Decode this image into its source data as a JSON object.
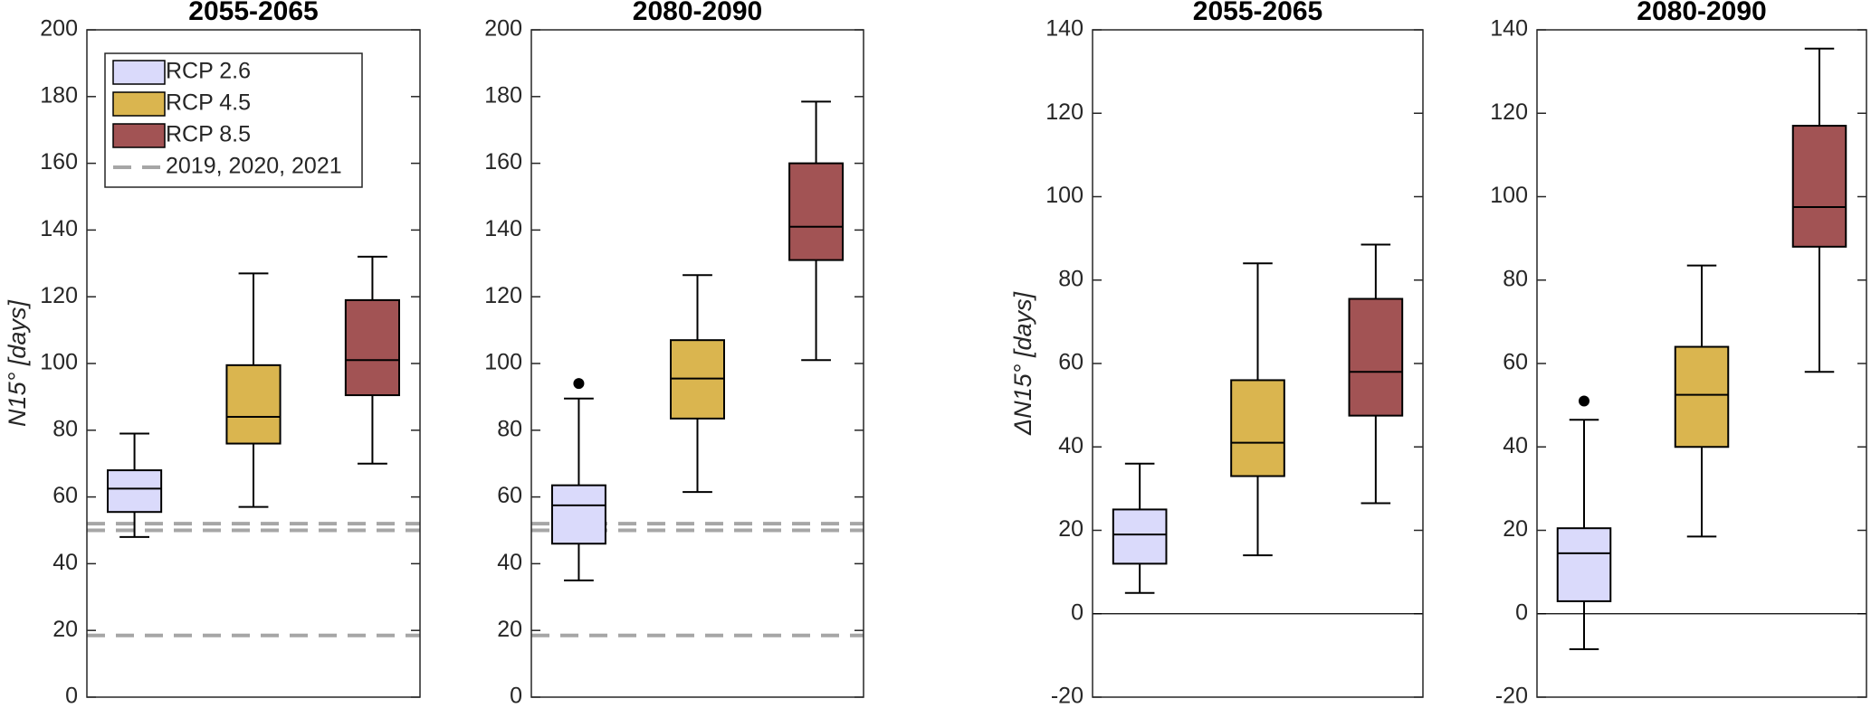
{
  "chart_data": [
    {
      "type": "box",
      "title": "2055-2065",
      "ylabel": "N15° [days]",
      "ylim": [
        0,
        200
      ],
      "yticks": [
        0,
        20,
        40,
        60,
        80,
        100,
        120,
        140,
        160,
        180,
        200
      ],
      "series": [
        {
          "name": "RCP 2.6",
          "color": "#dadafb",
          "whislo": 48,
          "q1": 55.5,
          "med": 62.5,
          "q3": 68,
          "whishi": 79,
          "outliers": []
        },
        {
          "name": "RCP 4.5",
          "color": "#dab54f",
          "whislo": 57,
          "q1": 76,
          "med": 84,
          "q3": 99.5,
          "whishi": 127,
          "outliers": []
        },
        {
          "name": "RCP 8.5",
          "color": "#a25354",
          "whislo": 70,
          "q1": 90.5,
          "med": 101,
          "q3": 119,
          "whishi": 132,
          "outliers": []
        }
      ],
      "hlines": {
        "name": "2019, 2020, 2021",
        "values": [
          52,
          50,
          18.5
        ],
        "color": "#a6a6a6",
        "style": "dashed"
      }
    },
    {
      "type": "box",
      "title": "2080-2090",
      "ylim": [
        0,
        200
      ],
      "yticks": [
        0,
        20,
        40,
        60,
        80,
        100,
        120,
        140,
        160,
        180,
        200
      ],
      "series": [
        {
          "color": "#dadafb",
          "whislo": 35,
          "q1": 46,
          "med": 57.5,
          "q3": 63.5,
          "whishi": 89.5,
          "outliers": [
            94
          ]
        },
        {
          "color": "#dab54f",
          "whislo": 61.5,
          "q1": 83.5,
          "med": 95.5,
          "q3": 107,
          "whishi": 126.5,
          "outliers": []
        },
        {
          "color": "#a25354",
          "whislo": 101,
          "q1": 131,
          "med": 141,
          "q3": 160,
          "whishi": 178.5,
          "outliers": []
        }
      ],
      "hlines": {
        "values": [
          52,
          50,
          18.5
        ],
        "color": "#a6a6a6",
        "style": "dashed"
      }
    },
    {
      "type": "box",
      "title": "2055-2065",
      "ylabel": "ΔN15° [days]",
      "ylim": [
        -20,
        140
      ],
      "yticks": [
        -20,
        0,
        20,
        40,
        60,
        80,
        100,
        120,
        140
      ],
      "series": [
        {
          "color": "#dadafb",
          "whislo": 5,
          "q1": 12,
          "med": 19,
          "q3": 25,
          "whishi": 36,
          "outliers": []
        },
        {
          "color": "#dab54f",
          "whislo": 14,
          "q1": 33,
          "med": 41,
          "q3": 56,
          "whishi": 84,
          "outliers": []
        },
        {
          "color": "#a25354",
          "whislo": 26.5,
          "q1": 47.5,
          "med": 58,
          "q3": 75.5,
          "whishi": 88.5,
          "outliers": []
        }
      ],
      "hlines": {
        "values": [
          0
        ],
        "color": "#000000",
        "style": "solid"
      }
    },
    {
      "type": "box",
      "title": "2080-2090",
      "ylim": [
        -20,
        140
      ],
      "yticks": [
        -20,
        0,
        20,
        40,
        60,
        80,
        100,
        120,
        140
      ],
      "series": [
        {
          "color": "#dadafb",
          "whislo": -8.5,
          "q1": 3,
          "med": 14.5,
          "q3": 20.5,
          "whishi": 46.5,
          "outliers": [
            51
          ]
        },
        {
          "color": "#dab54f",
          "whislo": 18.5,
          "q1": 40,
          "med": 52.5,
          "q3": 64,
          "whishi": 83.5,
          "outliers": []
        },
        {
          "color": "#a25354",
          "whislo": 58,
          "q1": 88,
          "med": 97.5,
          "q3": 117,
          "whishi": 135.5,
          "outliers": []
        }
      ],
      "hlines": {
        "values": [
          0
        ],
        "color": "#000000",
        "style": "solid"
      }
    }
  ]
}
